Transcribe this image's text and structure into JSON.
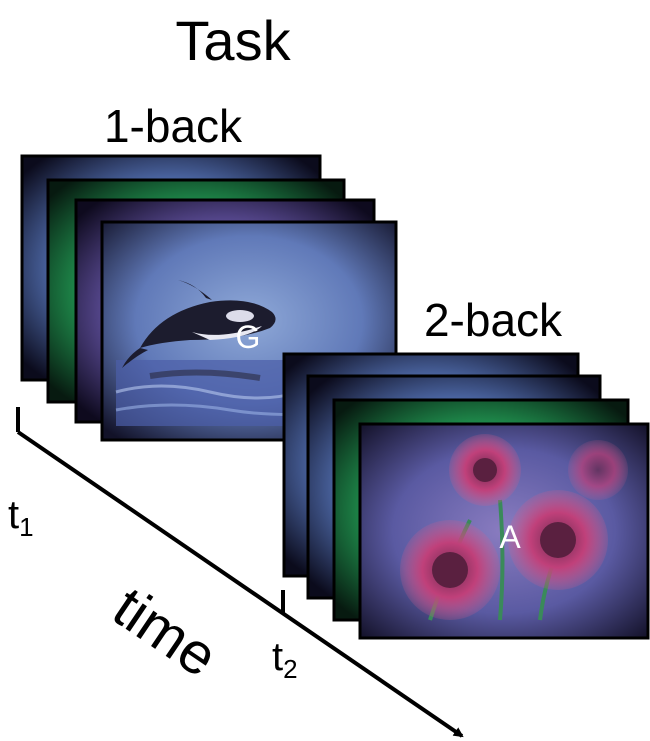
{
  "title": "Task",
  "conditions": [
    {
      "label": "1-back",
      "letter": "G",
      "frames": [
        "blue-noise",
        "green-noise",
        "purple-noise",
        "whale-image"
      ]
    },
    {
      "label": "2-back",
      "letter": "A",
      "frames": [
        "blue-noise",
        "blue-noise",
        "green-noise",
        "flower-image"
      ]
    }
  ],
  "axis": {
    "label": "time",
    "t1": {
      "base": "t",
      "sub": "1"
    },
    "t2": {
      "base": "t",
      "sub": "2"
    }
  },
  "colors": {
    "frame_border": "#000000",
    "blue_noise": "#5b78b8",
    "green_noise": "#2ea85a",
    "purple_noise": "#6a5aa8",
    "letter": "#ffffff"
  }
}
